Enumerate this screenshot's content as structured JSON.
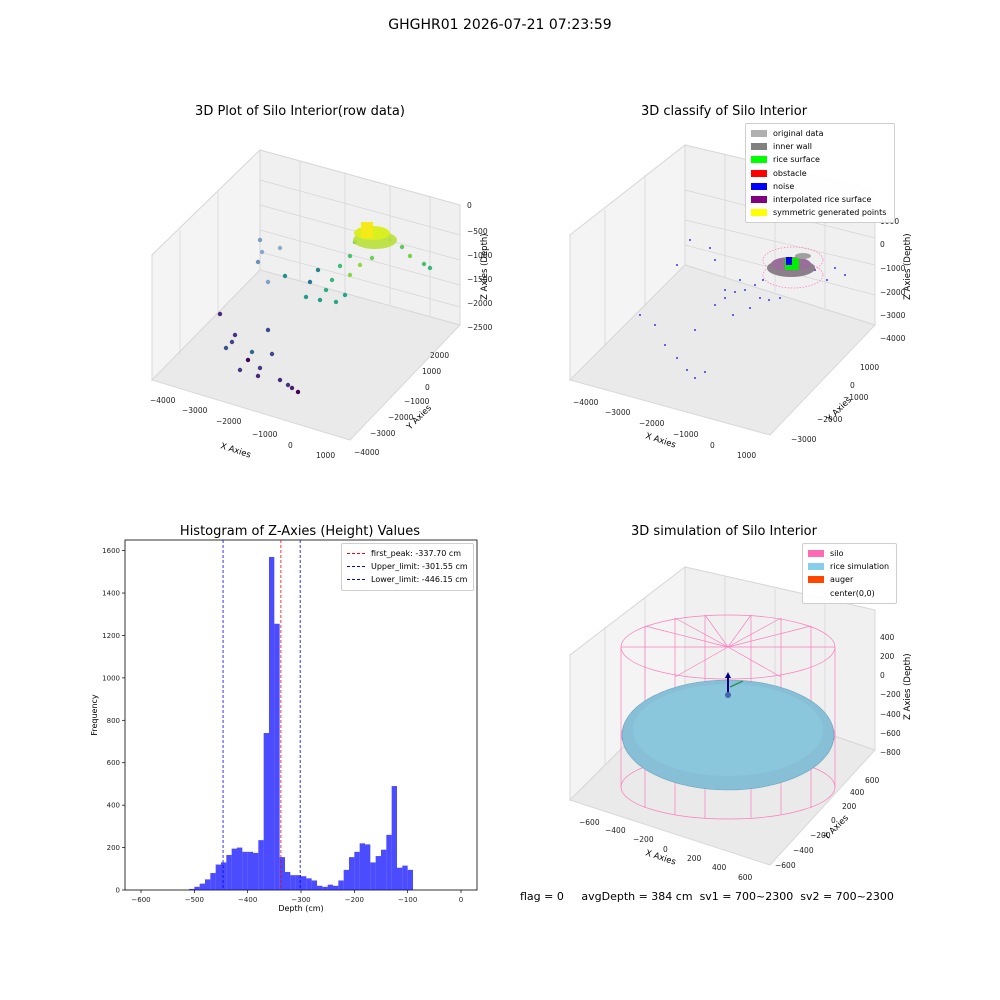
{
  "figure_title": "GHGHR01 2026-07-21 07:23:59",
  "status": {
    "flag": "flag = 0",
    "avg_depth": "avgDepth = 384 cm",
    "sv1": "sv1 = 700~2300",
    "sv2": "sv2 = 700~2300"
  },
  "panels": {
    "raw": {
      "title": "3D Plot of Silo Interior(row data)",
      "xlabel": "X Axies",
      "ylabel": "Y Axies",
      "zlabel": "Z Axies (Depth)",
      "xticks": [
        "−4000",
        "−3000",
        "−2000",
        "−1000",
        "0",
        "1000"
      ],
      "yticks": [
        "−4000",
        "−3000",
        "−2000",
        "−1000",
        "0",
        "1000",
        "2000"
      ],
      "zticks": [
        "0",
        "−500",
        "−1000",
        "−1500",
        "−2000",
        "−2500"
      ]
    },
    "classify": {
      "title": "3D classify of Silo Interior",
      "xlabel": "X Axies",
      "ylabel": "Y Axies",
      "zlabel": "Z Axies (Depth)",
      "xticks": [
        "−4000",
        "−3000",
        "−2000",
        "−1000",
        "0",
        "1000"
      ],
      "yticks": [
        "−3000",
        "−2000",
        "−1000",
        "0",
        "1000"
      ],
      "zticks": [
        "1000",
        "0",
        "−1000",
        "−2000",
        "−3000",
        "−4000"
      ],
      "legend": [
        {
          "label": "original data",
          "color": "#b0b0b0"
        },
        {
          "label": "inner wall",
          "color": "#808080"
        },
        {
          "label": "rice surface",
          "color": "#00ff00"
        },
        {
          "label": "obstacle",
          "color": "#ff0000"
        },
        {
          "label": "noise",
          "color": "#0000ff"
        },
        {
          "label": "interpolated rice surface",
          "color": "#800080"
        },
        {
          "label": "symmetric generated points",
          "color": "#ffff00"
        }
      ]
    },
    "simulation": {
      "title": "3D simulation of Silo Interior",
      "xlabel": "X Axies",
      "ylabel": "Y Axies",
      "zlabel": "Z Axies (Depth)",
      "xticks": [
        "−600",
        "−400",
        "−200",
        "0",
        "200",
        "400",
        "600"
      ],
      "yticks": [
        "−600",
        "−400",
        "−200",
        "0",
        "200",
        "400",
        "600"
      ],
      "zticks": [
        "400",
        "200",
        "0",
        "−200",
        "−400",
        "−600",
        "−800"
      ],
      "legend": [
        {
          "label": "silo",
          "color": "#ff69b4"
        },
        {
          "label": "rice simulation",
          "color": "#87ceeb"
        },
        {
          "label": "auger",
          "color": "#ff4500"
        },
        {
          "label": "center(0,0)",
          "color": ""
        }
      ]
    }
  },
  "chart_data": {
    "type": "bar",
    "title": "Histogram of Z-Axies (Height) Values",
    "xlabel": "Depth (cm)",
    "ylabel": "Frequency",
    "xlim": [
      -630,
      30
    ],
    "ylim": [
      0,
      1650
    ],
    "xticks": [
      -600,
      -500,
      -400,
      -300,
      -200,
      -100,
      0
    ],
    "yticks": [
      0,
      200,
      400,
      600,
      800,
      1000,
      1200,
      1400,
      1600
    ],
    "bin_width": 10,
    "bin_starts": [
      -510,
      -500,
      -490,
      -480,
      -470,
      -460,
      -450,
      -440,
      -430,
      -420,
      -410,
      -400,
      -390,
      -380,
      -370,
      -360,
      -350,
      -340,
      -330,
      -320,
      -310,
      -300,
      -290,
      -280,
      -270,
      -260,
      -250,
      -240,
      -230,
      -220,
      -210,
      -200,
      -190,
      -180,
      -170,
      -160,
      -150,
      -140,
      -130,
      -120,
      -110,
      -100,
      -90,
      -80,
      -70,
      -60,
      -50,
      -40,
      -30,
      -20,
      -10
    ],
    "values": [
      5,
      15,
      30,
      50,
      80,
      120,
      130,
      165,
      195,
      200,
      180,
      180,
      175,
      235,
      740,
      1570,
      1255,
      155,
      85,
      70,
      70,
      65,
      55,
      45,
      20,
      15,
      25,
      20,
      45,
      95,
      155,
      180,
      220,
      215,
      130,
      160,
      190,
      260,
      490,
      105,
      115,
      95,
      0,
      0,
      0,
      0,
      0,
      0,
      0,
      0,
      0
    ],
    "color": "#0000ff",
    "vlines": [
      {
        "label": "first_peak: -337.70 cm",
        "x": -337.7,
        "color": "#ff0000"
      },
      {
        "label": "Upper_limit: -301.55 cm",
        "x": -301.55,
        "color": "#0000ff"
      },
      {
        "label": "Lower_limit: -446.15 cm",
        "x": -446.15,
        "color": "#0000ff"
      }
    ],
    "legend_position": "upper right"
  }
}
